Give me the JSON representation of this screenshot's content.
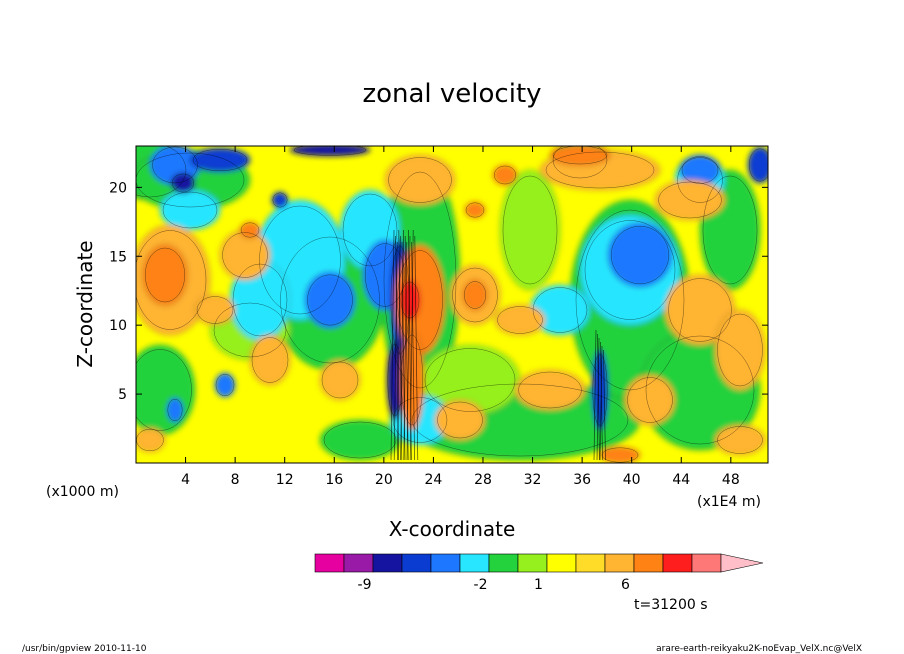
{
  "chart_data": {
    "type": "heatmap",
    "title": "zonal velocity",
    "xlabel": "X-coordinate",
    "ylabel": "Z-coordinate",
    "x_unit": "(x1000 m)",
    "x_scale_note": "(x1E4 m)",
    "xlim": [
      0,
      51
    ],
    "ylim": [
      0,
      23
    ],
    "x_ticks": [
      4,
      8,
      12,
      16,
      20,
      24,
      28,
      32,
      36,
      40,
      44,
      48
    ],
    "y_ticks": [
      5,
      10,
      15,
      20
    ],
    "colorbar": {
      "colors": [
        "#e600a0",
        "#9a1aa8",
        "#1414a0",
        "#0a3cd2",
        "#1e78ff",
        "#28e6ff",
        "#23d23c",
        "#96f01e",
        "#ffff00",
        "#ffdc28",
        "#ffb432",
        "#ff8214",
        "#ff1e1e",
        "#ff7878",
        "#ffbec8"
      ],
      "labels": [
        {
          "text": "-9",
          "index": 1
        },
        {
          "text": "-2",
          "index": 5
        },
        {
          "text": "1",
          "index": 7
        },
        {
          "text": "6",
          "index": 10
        }
      ]
    },
    "time_label": "t=31200 s"
  },
  "footer": {
    "left": "/usr/bin/gpview  2010-11-10",
    "right": "arare-earth-reikyaku2K-noEvap_VelX.nc@VelX"
  }
}
